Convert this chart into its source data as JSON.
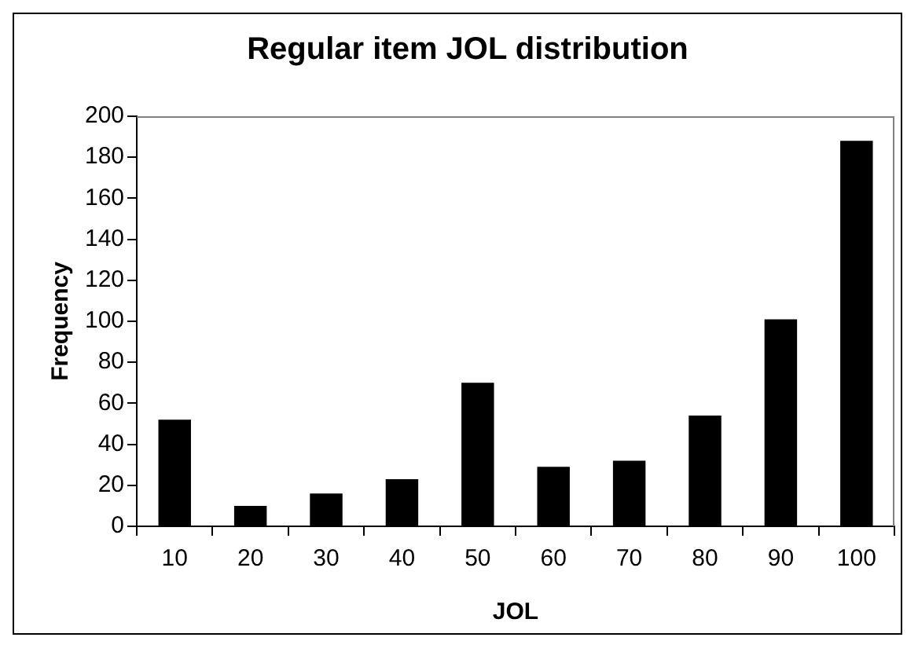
{
  "chart_data": {
    "type": "bar",
    "title": "Regular item JOL distribution",
    "xlabel": "JOL",
    "ylabel": "Frequency",
    "categories": [
      "10",
      "20",
      "30",
      "40",
      "50",
      "60",
      "70",
      "80",
      "90",
      "100"
    ],
    "values": [
      52,
      10,
      16,
      23,
      70,
      29,
      32,
      54,
      101,
      188
    ],
    "color": "#000000",
    "ylim": [
      0,
      200
    ],
    "yticks": [
      0,
      20,
      40,
      60,
      80,
      100,
      120,
      140,
      160,
      180,
      200
    ],
    "grid": false,
    "legend": false
  }
}
